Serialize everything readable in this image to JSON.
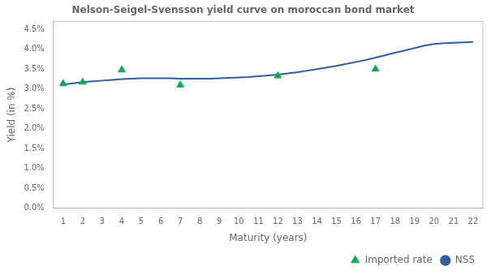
{
  "chart_data": {
    "type": "line",
    "title": "Nelson-Seigel-Svensson yield curve on moroccan bond market",
    "xlabel": "Maturity (years)",
    "ylabel": "Yield (in %)",
    "series": [
      {
        "name": "NSS",
        "type": "line",
        "color": "#2e5fa3",
        "x": [
          1,
          1.5,
          2,
          2.5,
          3,
          3.5,
          4,
          4.5,
          5,
          5.5,
          6,
          6.5,
          7,
          7.5,
          8,
          8.5,
          9,
          9.5,
          10,
          10.5,
          11,
          11.5,
          12,
          12.5,
          13,
          13.5,
          14,
          14.5,
          15,
          15.5,
          16,
          16.5,
          17,
          17.5,
          18,
          18.5,
          19,
          19.5,
          20,
          20.5,
          21,
          21.5,
          22
        ],
        "values": [
          0.0311,
          0.0314,
          0.0317,
          0.0319,
          0.0321,
          0.0323,
          0.0325,
          0.0326,
          0.0327,
          0.0327,
          0.0327,
          0.0327,
          0.0326,
          0.0326,
          0.0326,
          0.0326,
          0.0327,
          0.0328,
          0.0329,
          0.033,
          0.0332,
          0.0334,
          0.0336,
          0.0339,
          0.0342,
          0.0346,
          0.035,
          0.0354,
          0.0358,
          0.0363,
          0.0368,
          0.0373,
          0.0379,
          0.0385,
          0.0391,
          0.0397,
          0.0403,
          0.0409,
          0.0413,
          0.0415,
          0.0416,
          0.0417,
          0.0418
        ]
      },
      {
        "name": "Imported rate",
        "type": "scatter",
        "color": "#00b050",
        "marker": "triangle",
        "x": [
          1,
          2,
          4,
          7,
          12,
          17
        ],
        "values": [
          0.0313,
          0.0317,
          0.0348,
          0.031,
          0.0333,
          0.035
        ]
      }
    ],
    "xlim": [
      0.5,
      22.5
    ],
    "xticks": [
      1,
      2,
      3,
      4,
      5,
      6,
      7,
      8,
      9,
      10,
      11,
      12,
      13,
      14,
      15,
      16,
      17,
      18,
      19,
      20,
      21,
      22
    ],
    "ylim": [
      0.0,
      0.047
    ],
    "yticks": [
      {
        "value": 0.0,
        "label": "0.0%"
      },
      {
        "value": 0.005,
        "label": "0.5%"
      },
      {
        "value": 0.01,
        "label": "1.0%"
      },
      {
        "value": 0.015,
        "label": "1.5%"
      },
      {
        "value": 0.02,
        "label": "2.0%"
      },
      {
        "value": 0.025,
        "label": "2.5%"
      },
      {
        "value": 0.03,
        "label": "3.0%"
      },
      {
        "value": 0.035,
        "label": "3.5%"
      },
      {
        "value": 0.04,
        "label": "4.0%"
      },
      {
        "value": 0.045,
        "label": "4.5%"
      }
    ],
    "grid": false,
    "legend": "lower right"
  }
}
